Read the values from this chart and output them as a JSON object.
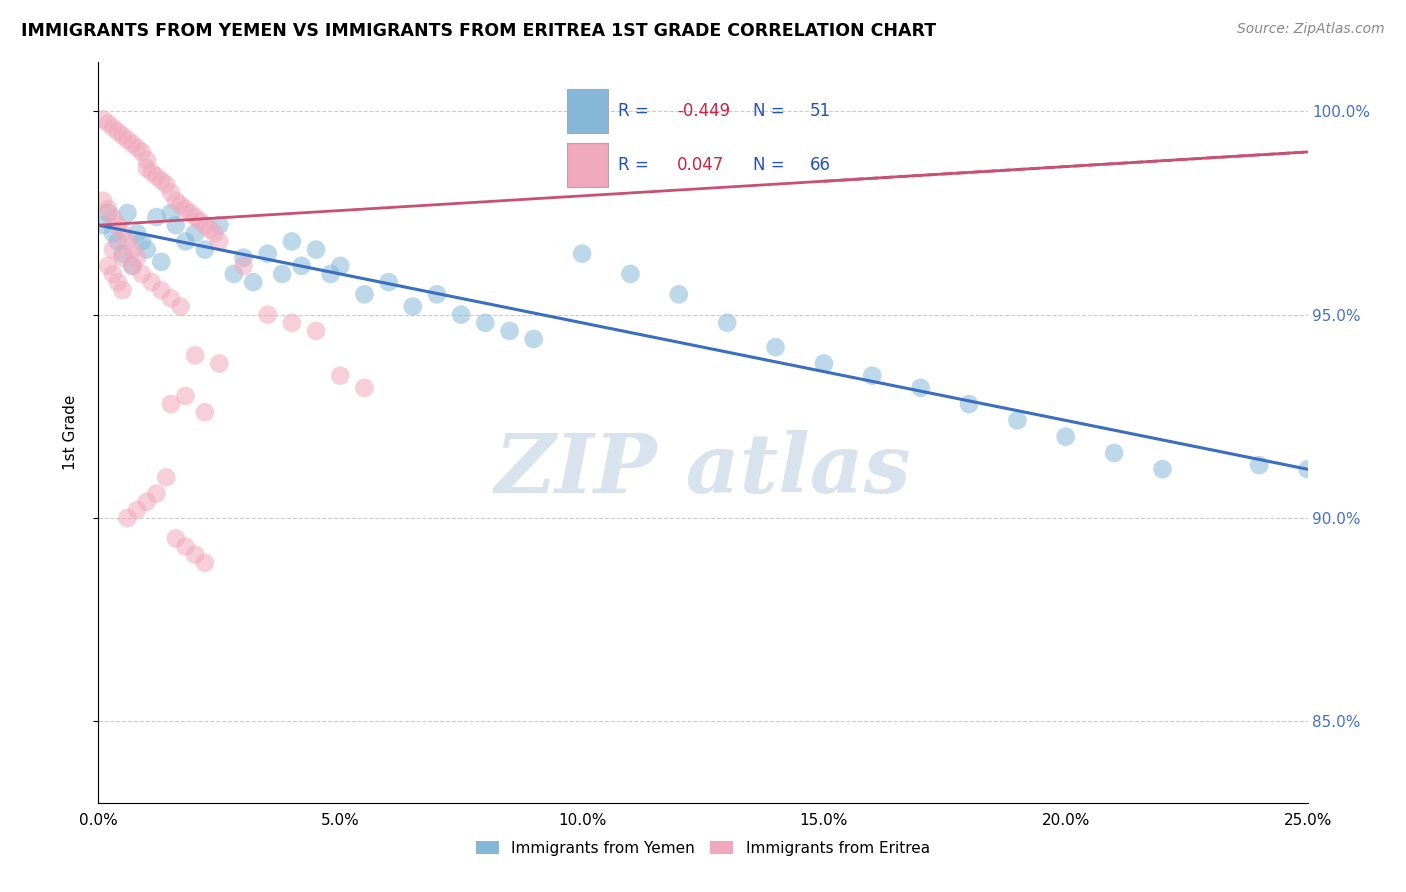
{
  "title": "IMMIGRANTS FROM YEMEN VS IMMIGRANTS FROM ERITREA 1ST GRADE CORRELATION CHART",
  "source": "Source: ZipAtlas.com",
  "ylabel": "1st Grade",
  "xlim": [
    0.0,
    0.25
  ],
  "ylim": [
    0.83,
    1.012
  ],
  "yticks": [
    0.85,
    0.9,
    0.95,
    1.0
  ],
  "ytick_labels": [
    "85.0%",
    "90.0%",
    "95.0%",
    "100.0%"
  ],
  "xtick_labels": [
    "0.0%",
    "5.0%",
    "10.0%",
    "15.0%",
    "20.0%",
    "25.0%"
  ],
  "xticks": [
    0.0,
    0.05,
    0.1,
    0.15,
    0.2,
    0.25
  ],
  "legend_blue_label": "Immigrants from Yemen",
  "legend_pink_label": "Immigrants from Eritrea",
  "blue_color": "#85b8d8",
  "pink_color": "#f0a8bc",
  "blue_line_color": "#3a6ec0",
  "pink_line_color": "#c85070",
  "blue_line_x0": 0.0,
  "blue_line_y0": 0.972,
  "blue_line_x1": 0.25,
  "blue_line_y1": 0.912,
  "pink_line_x0": 0.0,
  "pink_line_y0": 0.972,
  "pink_line_x1": 0.25,
  "pink_line_y1": 0.99,
  "blue_scatter_x": [
    0.001,
    0.002,
    0.003,
    0.004,
    0.005,
    0.006,
    0.007,
    0.008,
    0.009,
    0.01,
    0.012,
    0.013,
    0.015,
    0.016,
    0.018,
    0.02,
    0.022,
    0.025,
    0.028,
    0.03,
    0.032,
    0.035,
    0.038,
    0.04,
    0.042,
    0.045,
    0.048,
    0.05,
    0.055,
    0.06,
    0.065,
    0.07,
    0.075,
    0.08,
    0.085,
    0.09,
    0.1,
    0.11,
    0.12,
    0.13,
    0.14,
    0.15,
    0.16,
    0.17,
    0.18,
    0.19,
    0.2,
    0.21,
    0.22,
    0.24,
    0.25
  ],
  "blue_scatter_y": [
    0.972,
    0.975,
    0.97,
    0.968,
    0.965,
    0.975,
    0.962,
    0.97,
    0.968,
    0.966,
    0.974,
    0.963,
    0.975,
    0.972,
    0.968,
    0.97,
    0.966,
    0.972,
    0.96,
    0.964,
    0.958,
    0.965,
    0.96,
    0.968,
    0.962,
    0.966,
    0.96,
    0.962,
    0.955,
    0.958,
    0.952,
    0.955,
    0.95,
    0.948,
    0.946,
    0.944,
    0.965,
    0.96,
    0.955,
    0.948,
    0.942,
    0.938,
    0.935,
    0.932,
    0.928,
    0.924,
    0.92,
    0.916,
    0.912,
    0.913,
    0.912
  ],
  "pink_scatter_x": [
    0.001,
    0.002,
    0.003,
    0.004,
    0.005,
    0.006,
    0.007,
    0.008,
    0.009,
    0.01,
    0.01,
    0.011,
    0.012,
    0.013,
    0.014,
    0.015,
    0.016,
    0.017,
    0.018,
    0.019,
    0.02,
    0.021,
    0.022,
    0.023,
    0.024,
    0.025,
    0.003,
    0.005,
    0.007,
    0.009,
    0.011,
    0.013,
    0.015,
    0.017,
    0.001,
    0.002,
    0.003,
    0.004,
    0.005,
    0.006,
    0.007,
    0.008,
    0.002,
    0.003,
    0.004,
    0.005,
    0.03,
    0.035,
    0.04,
    0.045,
    0.02,
    0.025,
    0.015,
    0.018,
    0.022,
    0.01,
    0.012,
    0.008,
    0.006,
    0.014,
    0.05,
    0.055,
    0.016,
    0.018,
    0.02,
    0.022
  ],
  "pink_scatter_y": [
    0.998,
    0.997,
    0.996,
    0.995,
    0.994,
    0.993,
    0.992,
    0.991,
    0.99,
    0.988,
    0.986,
    0.985,
    0.984,
    0.983,
    0.982,
    0.98,
    0.978,
    0.977,
    0.976,
    0.975,
    0.974,
    0.973,
    0.972,
    0.971,
    0.97,
    0.968,
    0.966,
    0.964,
    0.962,
    0.96,
    0.958,
    0.956,
    0.954,
    0.952,
    0.978,
    0.976,
    0.974,
    0.972,
    0.97,
    0.968,
    0.966,
    0.964,
    0.962,
    0.96,
    0.958,
    0.956,
    0.962,
    0.95,
    0.948,
    0.946,
    0.94,
    0.938,
    0.928,
    0.93,
    0.926,
    0.904,
    0.906,
    0.902,
    0.9,
    0.91,
    0.935,
    0.932,
    0.895,
    0.893,
    0.891,
    0.889
  ]
}
